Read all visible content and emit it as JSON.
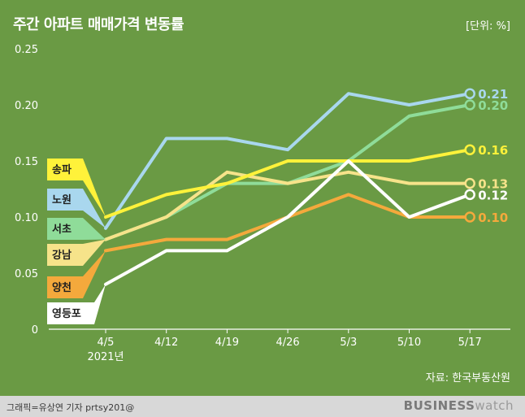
{
  "title": "주간 아파트 매매가격 변동률",
  "unit": "[단위: %]",
  "source": "자료: 한국부동산원",
  "footer": {
    "credit": "그래픽=유상연 기자 prtsy201@",
    "brand_bold": "BUSINESS",
    "brand_light": "watch"
  },
  "chart_data": {
    "type": "line",
    "title": "주간 아파트 매매가격 변동률",
    "ylabel": "",
    "xlabel": "",
    "ylim": [
      0,
      0.25
    ],
    "y_ticks": [
      "0",
      "0.05",
      "0.10",
      "0.15",
      "0.20",
      "0.25"
    ],
    "y_tick_values": [
      0,
      0.05,
      0.1,
      0.15,
      0.2,
      0.25
    ],
    "categories": [
      "4/5",
      "4/12",
      "4/19",
      "4/26",
      "5/3",
      "5/10",
      "5/17"
    ],
    "x_sublabel": "2021년",
    "grid": false,
    "legend": "left",
    "series": [
      {
        "name": "노원",
        "color": "#a9d7ee",
        "values": [
          0.09,
          0.17,
          0.17,
          0.16,
          0.21,
          0.2,
          0.21
        ],
        "end_label": "0.21"
      },
      {
        "name": "서초",
        "color": "#8fdc99",
        "values": [
          0.08,
          0.1,
          0.13,
          0.13,
          0.15,
          0.19,
          0.2
        ],
        "end_label": "0.20"
      },
      {
        "name": "송파",
        "color": "#fff23a",
        "values": [
          0.1,
          0.12,
          0.13,
          0.15,
          0.15,
          0.15,
          0.16
        ],
        "end_label": "0.16"
      },
      {
        "name": "강남",
        "color": "#f6e38a",
        "values": [
          0.08,
          0.1,
          0.14,
          0.13,
          0.14,
          0.13,
          0.13
        ],
        "end_label": "0.13"
      },
      {
        "name": "영등포",
        "color": "#ffffff",
        "values": [
          0.04,
          0.07,
          0.07,
          0.1,
          0.15,
          0.1,
          0.12
        ],
        "end_label": "0.12"
      },
      {
        "name": "양천",
        "color": "#f4a93c",
        "values": [
          0.07,
          0.08,
          0.08,
          0.1,
          0.12,
          0.1,
          0.1
        ],
        "end_label": "0.10"
      }
    ],
    "legend_order": [
      "송파",
      "노원",
      "서초",
      "강남",
      "양천",
      "영등포"
    ]
  }
}
